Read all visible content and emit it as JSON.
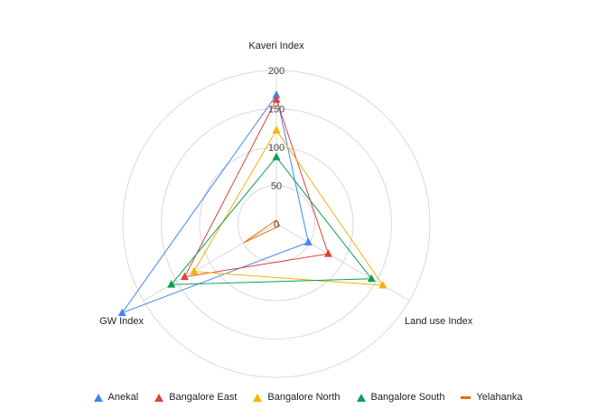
{
  "chart_data": {
    "type": "radar",
    "axes": [
      "Kaveri Index",
      "Land use Index",
      "GW Index"
    ],
    "ticks": [
      0,
      50,
      100,
      150,
      200
    ],
    "rmax": 200,
    "grid": true,
    "legend_position": "bottom",
    "series": [
      {
        "name": "Anekal",
        "color": "#4285f4",
        "marker": "triangle",
        "values": [
          168,
          48,
          232
        ]
      },
      {
        "name": "Bangalore East",
        "color": "#db4437",
        "marker": "triangle",
        "values": [
          162,
          78,
          138
        ]
      },
      {
        "name": "Bangalore North",
        "color": "#f4b400",
        "marker": "triangle",
        "values": [
          122,
          160,
          124
        ]
      },
      {
        "name": "Bangalore South",
        "color": "#0f9d58",
        "marker": "triangle",
        "values": [
          87,
          143,
          158
        ]
      },
      {
        "name": "Yelahanka",
        "color": "#e8710a",
        "marker": "line",
        "values": [
          5,
          5,
          49
        ]
      }
    ]
  }
}
